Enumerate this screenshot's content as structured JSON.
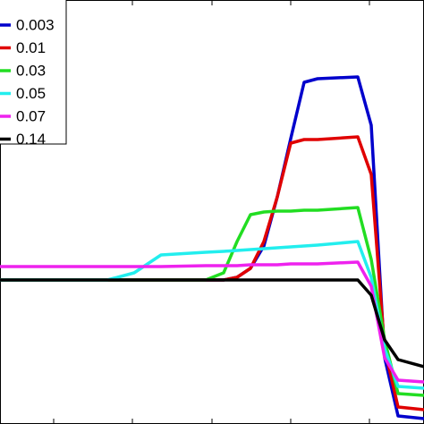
{
  "chart_data": {
    "type": "line",
    "x": [
      0,
      60,
      120,
      150,
      180,
      230,
      250,
      265,
      280,
      295,
      310,
      325,
      340,
      355,
      400,
      415,
      430,
      445,
      474
    ],
    "xlim": [
      0,
      474
    ],
    "ylim": [
      0,
      474
    ],
    "legend": "upper left",
    "series": [
      {
        "name": "0.003",
        "color": "#0000cc",
        "values": [
          161,
          161,
          161,
          161,
          161,
          161,
          161,
          164,
          174,
          199,
          254,
          319,
          382,
          386,
          388,
          334,
          74,
          9,
          6
        ]
      },
      {
        "name": "0.01",
        "color": "#e00000",
        "values": [
          161,
          161,
          161,
          161,
          161,
          161,
          161,
          164,
          174,
          204,
          254,
          314,
          318,
          318,
          321,
          279,
          84,
          19,
          16
        ]
      },
      {
        "name": "0.03",
        "color": "#22dd22",
        "values": [
          161,
          161,
          161,
          161,
          161,
          161,
          169,
          204,
          234,
          237,
          238,
          238,
          239,
          239,
          242,
          184,
          94,
          34,
          32
        ]
      },
      {
        "name": "0.05",
        "color": "#22eeee",
        "values": [
          161,
          161,
          161,
          169,
          189,
          192,
          193,
          194,
          195,
          196,
          197,
          198,
          199,
          200,
          204,
          164,
          84,
          42,
          40
        ]
      },
      {
        "name": "0.07",
        "color": "#ee22ee",
        "values": [
          176,
          176,
          176,
          176,
          176,
          177,
          177,
          177,
          178,
          178,
          178,
          179,
          179,
          179,
          181,
          154,
          74,
          49,
          47
        ]
      },
      {
        "name": "0.14",
        "color": "#000000",
        "values": [
          161,
          161,
          161,
          161,
          161,
          161,
          161,
          161,
          161,
          161,
          161,
          161,
          161,
          161,
          161,
          144,
          94,
          72,
          64
        ]
      }
    ]
  }
}
